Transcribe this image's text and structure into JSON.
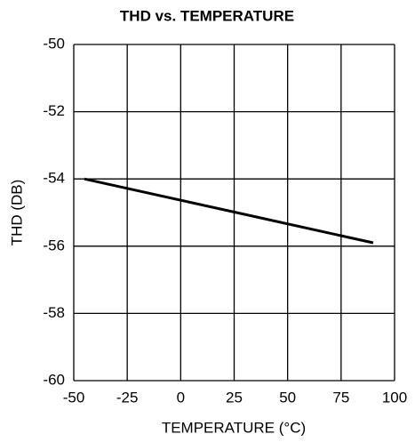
{
  "chart_data": {
    "type": "line",
    "title": "THD vs. TEMPERATURE",
    "xlabel": "TEMPERATURE (°C)",
    "ylabel": "THD (DB)",
    "x": [
      -45,
      90
    ],
    "values": [
      -54,
      -55.9
    ],
    "color": "#000000",
    "xlim": [
      -50,
      100
    ],
    "xticks": [
      -50,
      -25,
      0,
      25,
      50,
      75,
      100
    ],
    "ylim": [
      -60,
      -50
    ],
    "yticks": [
      -60,
      -58,
      -56,
      -54,
      -52,
      -50
    ],
    "grid": true
  }
}
